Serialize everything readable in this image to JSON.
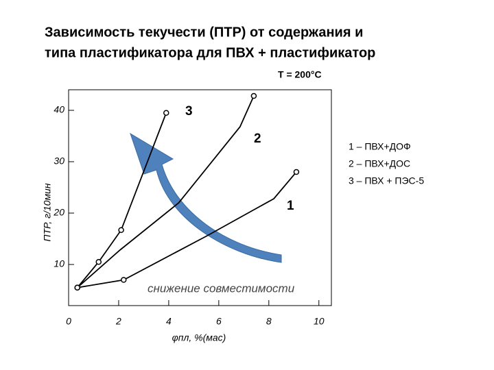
{
  "chart_data": {
    "type": "line",
    "title": "Зависимость текучести (ПТР) от содержания и",
    "title_line2": "типа пластификатора для ПВХ + пластификатор",
    "subtitle": "Т = 200°С",
    "x_label": "φпл, %(мас)",
    "y_label": "ПТР, г/10мин",
    "annotation": "снижение совместимости",
    "xlim": [
      0,
      10.5
    ],
    "xticks": [
      0,
      2,
      4,
      6,
      8,
      10
    ],
    "ylim": [
      2,
      44
    ],
    "yticks": [
      10,
      20,
      30,
      40
    ],
    "series": [
      {
        "name": "1 – ПВХ+ДОФ",
        "curve_label": "1",
        "color": "#000000",
        "x": [
          0.35,
          2.2,
          5.5,
          8.2,
          9.1
        ],
        "values": [
          5.5,
          7,
          15.5,
          22.8,
          28
        ],
        "markers": [
          true,
          true,
          false,
          false,
          true
        ]
      },
      {
        "name": "2 – ПВХ+ДОС",
        "curve_label": "2",
        "color": "#000000",
        "x": [
          0.35,
          2.05,
          4.4,
          6.85,
          7.4
        ],
        "values": [
          5.5,
          12.8,
          22,
          36.8,
          42.8
        ],
        "markers": [
          true,
          false,
          false,
          false,
          true
        ]
      },
      {
        "name": "3 – ПВХ + ПЭС-5",
        "curve_label": "3",
        "color": "#000000",
        "x": [
          0.35,
          1.2,
          2.1,
          3.9
        ],
        "values": [
          5.5,
          10.5,
          16.7,
          39.5
        ],
        "markers": [
          true,
          true,
          true,
          true
        ]
      }
    ]
  }
}
